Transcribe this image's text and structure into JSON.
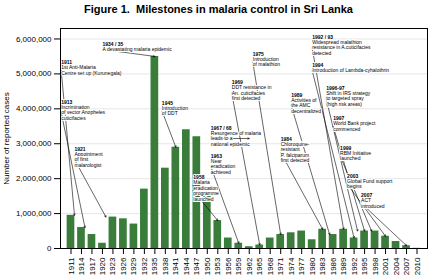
{
  "chart_data": {
    "type": "bar",
    "title": "Figure 1.  Milestones in malaria control in Sri Lanka",
    "ylabel": "Number of reported cases",
    "x": [
      1911,
      1914,
      1917,
      1920,
      1923,
      1926,
      1929,
      1932,
      1935,
      1938,
      1941,
      1944,
      1947,
      1950,
      1953,
      1956,
      1959,
      1962,
      1965,
      1968,
      1971,
      1974,
      1977,
      1980,
      1983,
      1986,
      1989,
      1992,
      1995,
      1998,
      2001,
      2004,
      2007,
      2010
    ],
    "values": [
      950000,
      600000,
      400000,
      150000,
      900000,
      850000,
      700000,
      1700000,
      5500000,
      2300000,
      2900000,
      3400000,
      3200000,
      1600000,
      800000,
      300000,
      150000,
      50000,
      100000,
      300000,
      400000,
      450000,
      500000,
      250000,
      550000,
      400000,
      550000,
      300000,
      500000,
      500000,
      350000,
      200000,
      80000,
      5000
    ],
    "color": "#3a7d3a",
    "xlim": [
      1908,
      2013
    ],
    "xticks": [
      1911,
      1914,
      1917,
      1920,
      1923,
      1926,
      1929,
      1932,
      1935,
      1938,
      1941,
      1944,
      1947,
      1950,
      1953,
      1956,
      1959,
      1962,
      1965,
      1968,
      1971,
      1974,
      1977,
      1980,
      1983,
      1986,
      1989,
      1992,
      1995,
      1998,
      2001,
      2004,
      2007,
      2010
    ],
    "ylim": [
      0,
      6300000
    ],
    "yticks": [
      0,
      {
        "value": 1000000,
        "label": "1,000,000"
      },
      {
        "value": 2000000,
        "label": "2,000,000"
      },
      {
        "value": 3000000,
        "label": "3,000,000"
      },
      {
        "value": 4000000,
        "label": "4,000,000"
      },
      {
        "value": 5000000,
        "label": "5,000,000"
      },
      {
        "value": 6000000,
        "label": "6,000,000"
      }
    ],
    "grid": true,
    "annotations": [
      {
        "label": "1911",
        "text": "1st Anti-Malaria\nCentre set up (Kurunegala)",
        "x": 1908.2,
        "y": 5100000,
        "arrow_x": 1912,
        "arrow_y": 950000
      },
      {
        "label": "1913",
        "text": "Incrimination\nof vector Anopheles\ncuticifacies",
        "x": 1908.2,
        "y": 3900000,
        "arrow_x": 1915,
        "arrow_y": 600000
      },
      {
        "label": "1921",
        "text": "Appointment\nof first\nmalarologist",
        "x": 1912,
        "y": 2550000,
        "arrow_x": 1921,
        "arrow_y": 900000
      },
      {
        "label": "1934 / 35",
        "text": "A devastating malaria epidemic",
        "x": 1920,
        "y": 5700000,
        "arrow_x": 1935,
        "arrow_y": 5500000
      },
      {
        "label": "1945",
        "text": "Introduction\nof DDT",
        "x": 1937,
        "y": 3950000,
        "arrow_x": 1941,
        "arrow_y": 2900000
      },
      {
        "label": "1958",
        "text": "Malaria\neradication\nprogramme\nlaunched",
        "x": 1946,
        "y": 1650000,
        "arrow_x": 1953,
        "arrow_y": 800000
      },
      {
        "label": "1963",
        "text": "Near\neradication\nachieved",
        "x": 1951,
        "y": 2350000,
        "arrow_x": 1959,
        "arrow_y": 150000
      },
      {
        "label": "1967 / 68",
        "text": "Resurgence of malaria\nleads to a\nnational epidemic",
        "x": 1951,
        "y": 3150000,
        "arrow_x": 1962,
        "arrow_y": 3150000
      },
      {
        "label": "1969",
        "text": "DDT resistance in\nAn. cuticifacies\nfirst detected",
        "x": 1957,
        "y": 4450000,
        "arrow_x": 1965,
        "arrow_y": 100000
      },
      {
        "label": "1975",
        "text": "Introduction\nof malathion",
        "x": 1963,
        "y": 5350000,
        "arrow_x": 1971,
        "arrow_y": 400000
      },
      {
        "label": "1984",
        "text": "Chloroquine-\nresistant\nP. falciparum\nfirst detected",
        "x": 1971,
        "y": 2750000,
        "arrow_x": 1983,
        "arrow_y": 550000
      },
      {
        "label": "1989",
        "text": "Activities of\nthe AMC\ndecentralized",
        "x": 1974,
        "y": 4100000,
        "arrow_x": 1985,
        "arrow_y": 400000
      },
      {
        "label": "1992 / 93",
        "text": "Widespread malathion\nresistance in A.cuticifacies\ndetected",
        "x": 1980,
        "y": 5750000,
        "arrow_x": 1989,
        "arrow_y": 550000
      },
      {
        "label": "1994",
        "text": "Introduction of Lambda-cyhalothrin",
        "x": 1980,
        "y": 5100000,
        "arrow_x": 1992,
        "arrow_y": 300000
      },
      {
        "label": "1996-97",
        "text": "Shift in IRS strategy\nto targeted spray\n(high risk areas)",
        "x": 1984,
        "y": 4300000,
        "arrow_x": 1993,
        "arrow_y": 500000
      },
      {
        "label": "1997",
        "text": "World Bank project\ncommenced",
        "x": 1986,
        "y": 3500000,
        "arrow_x": 1995,
        "arrow_y": 500000
      },
      {
        "label": "1999",
        "text": "RBM Initiative\nlaunched",
        "x": 1988,
        "y": 2650000,
        "arrow_x": 1997,
        "arrow_y": 500000
      },
      {
        "label": "2003",
        "text": "Global Fund support\nbegins",
        "x": 1990,
        "y": 1850000,
        "arrow_x": 2001,
        "arrow_y": 350000
      },
      {
        "label": "2007",
        "text": "ACT\nintroduced",
        "x": 1994,
        "y": 1300000,
        "arrow_x": 2007,
        "arrow_y": 80000
      }
    ]
  }
}
